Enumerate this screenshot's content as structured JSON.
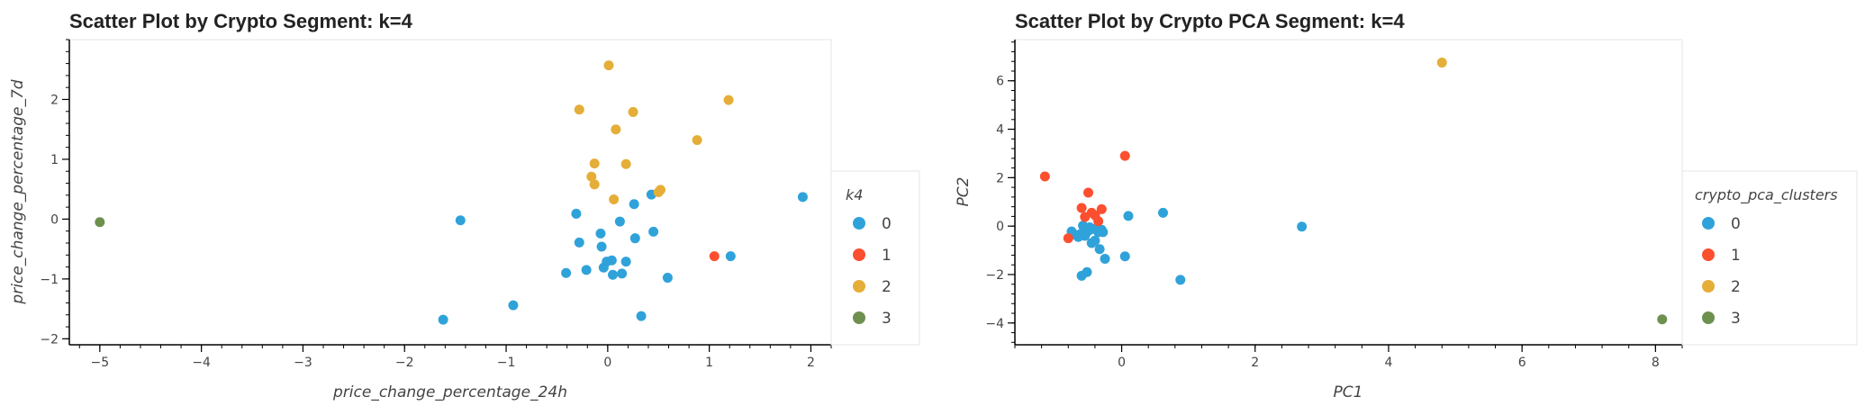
{
  "chart_data": [
    {
      "type": "scatter",
      "title": "Scatter Plot by Crypto Segment: k=4",
      "xlabel": "price_change_percentage_24h",
      "ylabel": "price_change_percentage_7d",
      "xlim": [
        -5.3,
        2.2
      ],
      "ylim": [
        -2.1,
        3.0
      ],
      "xticks": [
        -5,
        -4,
        -3,
        -2,
        -1,
        0,
        1,
        2
      ],
      "yticks": [
        -2,
        -1,
        0,
        1,
        2
      ],
      "legend_title": "k4",
      "legend_position": "right",
      "series": [
        {
          "name": "0",
          "color": "#30a2da",
          "points": [
            [
              -1.45,
              -0.02
            ],
            [
              -1.62,
              -1.68
            ],
            [
              -0.93,
              -1.44
            ],
            [
              -0.31,
              0.09
            ],
            [
              -0.28,
              -0.39
            ],
            [
              -0.41,
              -0.9
            ],
            [
              -0.21,
              -0.85
            ],
            [
              -0.07,
              -0.24
            ],
            [
              -0.06,
              -0.46
            ],
            [
              -0.04,
              -0.81
            ],
            [
              -0.01,
              -0.71
            ],
            [
              0.04,
              -0.69
            ],
            [
              0.05,
              -0.93
            ],
            [
              0.12,
              -0.04
            ],
            [
              0.14,
              -0.91
            ],
            [
              0.18,
              -0.71
            ],
            [
              0.26,
              0.25
            ],
            [
              0.27,
              -0.32
            ],
            [
              0.33,
              -1.62
            ],
            [
              0.43,
              0.41
            ],
            [
              0.45,
              -0.21
            ],
            [
              0.59,
              -0.98
            ],
            [
              1.21,
              -0.62
            ],
            [
              1.92,
              0.37
            ]
          ]
        },
        {
          "name": "1",
          "color": "#fc4f30",
          "points": [
            [
              1.05,
              -0.62
            ]
          ]
        },
        {
          "name": "2",
          "color": "#e5ae38",
          "points": [
            [
              -0.28,
              1.83
            ],
            [
              -0.13,
              0.93
            ],
            [
              -0.16,
              0.71
            ],
            [
              -0.13,
              0.58
            ],
            [
              0.01,
              2.57
            ],
            [
              0.06,
              0.33
            ],
            [
              0.08,
              1.5
            ],
            [
              0.18,
              0.92
            ],
            [
              0.25,
              1.79
            ],
            [
              0.5,
              0.45
            ],
            [
              0.52,
              0.49
            ],
            [
              0.88,
              1.32
            ],
            [
              1.19,
              1.99
            ]
          ]
        },
        {
          "name": "3",
          "color": "#6d904f",
          "points": [
            [
              -5.0,
              -0.05
            ]
          ]
        }
      ]
    },
    {
      "type": "scatter",
      "title": "Scatter Plot by Crypto PCA Segment: k=4",
      "xlabel": "PC1",
      "ylabel": "PC2",
      "xlim": [
        -1.6,
        8.4
      ],
      "ylim": [
        -4.9,
        7.7
      ],
      "xticks": [
        0,
        2,
        4,
        6,
        8
      ],
      "yticks": [
        -4,
        -2,
        0,
        2,
        4,
        6
      ],
      "legend_title": "crypto_pca_clusters",
      "legend_position": "right",
      "series": [
        {
          "name": "0",
          "color": "#30a2da",
          "points": [
            [
              -0.75,
              -0.22
            ],
            [
              -0.7,
              -0.35
            ],
            [
              -0.65,
              -0.45
            ],
            [
              -0.6,
              -0.3
            ],
            [
              -0.58,
              0.02
            ],
            [
              -0.55,
              -0.4
            ],
            [
              -0.5,
              -0.2
            ],
            [
              -0.48,
              -0.05
            ],
            [
              -0.45,
              -0.7
            ],
            [
              -0.42,
              -0.12
            ],
            [
              -0.4,
              -0.6
            ],
            [
              -0.38,
              -0.1
            ],
            [
              -0.35,
              -0.25
            ],
            [
              -0.33,
              -0.95
            ],
            [
              -0.3,
              -0.15
            ],
            [
              -0.28,
              -0.25
            ],
            [
              -0.25,
              -1.35
            ],
            [
              -0.6,
              -2.05
            ],
            [
              -0.52,
              -1.9
            ],
            [
              0.05,
              -1.25
            ],
            [
              0.1,
              0.42
            ],
            [
              0.62,
              0.55
            ],
            [
              0.88,
              -2.22
            ],
            [
              2.7,
              -0.02
            ]
          ]
        },
        {
          "name": "1",
          "color": "#fc4f30",
          "points": [
            [
              -1.15,
              2.05
            ],
            [
              -0.8,
              -0.5
            ],
            [
              -0.6,
              0.75
            ],
            [
              -0.55,
              0.38
            ],
            [
              -0.5,
              1.38
            ],
            [
              -0.45,
              0.55
            ],
            [
              -0.4,
              0.45
            ],
            [
              -0.35,
              0.2
            ],
            [
              -0.3,
              0.7
            ],
            [
              0.05,
              2.9
            ]
          ]
        },
        {
          "name": "2",
          "color": "#e5ae38",
          "points": [
            [
              4.8,
              6.75
            ]
          ]
        },
        {
          "name": "3",
          "color": "#6d904f",
          "points": [
            [
              8.1,
              -3.85
            ]
          ]
        }
      ]
    }
  ]
}
